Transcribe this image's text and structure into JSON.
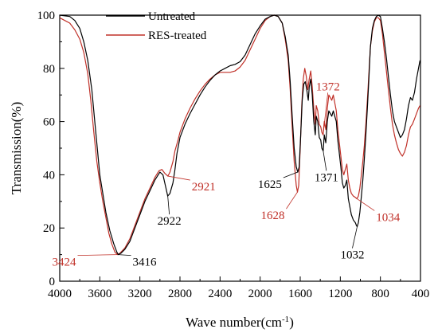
{
  "chart_data": {
    "type": "line",
    "xlabel": "Wave number(cm",
    "xlabel_sup": "-1",
    "xlabel_suffix": ")",
    "ylabel": "Transmission(%)",
    "xlim": [
      4000,
      400
    ],
    "ylim": [
      0,
      100
    ],
    "x_reversed": true,
    "x_ticks": [
      4000,
      3600,
      3200,
      2800,
      2400,
      2000,
      1600,
      1200,
      800,
      400
    ],
    "y_ticks": [
      0,
      20,
      40,
      60,
      80,
      100
    ],
    "grid": false,
    "legend_position": "top-center",
    "series": [
      {
        "name": "Untreated",
        "color": "#000000",
        "points": [
          [
            4000,
            100
          ],
          [
            3900,
            99.5
          ],
          [
            3850,
            98
          ],
          [
            3800,
            95
          ],
          [
            3760,
            90
          ],
          [
            3720,
            83
          ],
          [
            3680,
            72
          ],
          [
            3650,
            60
          ],
          [
            3620,
            48
          ],
          [
            3600,
            40
          ],
          [
            3570,
            33
          ],
          [
            3540,
            26
          ],
          [
            3500,
            19
          ],
          [
            3460,
            14
          ],
          [
            3430,
            11
          ],
          [
            3416,
            10
          ],
          [
            3390,
            10.5
          ],
          [
            3350,
            12
          ],
          [
            3300,
            15
          ],
          [
            3250,
            20
          ],
          [
            3200,
            25
          ],
          [
            3150,
            30
          ],
          [
            3100,
            34
          ],
          [
            3050,
            38
          ],
          [
            3000,
            41
          ],
          [
            2970,
            40
          ],
          [
            2940,
            35
          ],
          [
            2922,
            32
          ],
          [
            2900,
            33
          ],
          [
            2870,
            37
          ],
          [
            2850,
            42
          ],
          [
            2830,
            48
          ],
          [
            2800,
            54
          ],
          [
            2750,
            59
          ],
          [
            2700,
            63
          ],
          [
            2650,
            66.5
          ],
          [
            2600,
            70
          ],
          [
            2550,
            73
          ],
          [
            2500,
            75.5
          ],
          [
            2450,
            77.5
          ],
          [
            2400,
            79
          ],
          [
            2350,
            80
          ],
          [
            2300,
            81
          ],
          [
            2250,
            81.5
          ],
          [
            2200,
            82.5
          ],
          [
            2150,
            85
          ],
          [
            2100,
            89
          ],
          [
            2050,
            93
          ],
          [
            2000,
            96
          ],
          [
            1950,
            98.5
          ],
          [
            1900,
            99.5
          ],
          [
            1860,
            100
          ],
          [
            1820,
            99.5
          ],
          [
            1780,
            97
          ],
          [
            1750,
            92
          ],
          [
            1720,
            85
          ],
          [
            1700,
            75
          ],
          [
            1680,
            62
          ],
          [
            1660,
            50
          ],
          [
            1640,
            43
          ],
          [
            1625,
            41
          ],
          [
            1610,
            43
          ],
          [
            1595,
            55
          ],
          [
            1580,
            68
          ],
          [
            1565,
            74
          ],
          [
            1550,
            75
          ],
          [
            1535,
            72
          ],
          [
            1520,
            68
          ],
          [
            1510,
            73
          ],
          [
            1495,
            76
          ],
          [
            1480,
            70
          ],
          [
            1465,
            60
          ],
          [
            1450,
            55
          ],
          [
            1440,
            62
          ],
          [
            1425,
            60
          ],
          [
            1410,
            54
          ],
          [
            1395,
            53
          ],
          [
            1385,
            50
          ],
          [
            1371,
            49
          ],
          [
            1360,
            55
          ],
          [
            1345,
            52
          ],
          [
            1330,
            60
          ],
          [
            1315,
            64
          ],
          [
            1300,
            63
          ],
          [
            1285,
            62
          ],
          [
            1270,
            64
          ],
          [
            1255,
            62
          ],
          [
            1240,
            60
          ],
          [
            1225,
            53
          ],
          [
            1210,
            48
          ],
          [
            1195,
            43
          ],
          [
            1180,
            37
          ],
          [
            1165,
            35
          ],
          [
            1150,
            36
          ],
          [
            1135,
            38
          ],
          [
            1120,
            31
          ],
          [
            1105,
            28
          ],
          [
            1090,
            25
          ],
          [
            1070,
            23
          ],
          [
            1050,
            22
          ],
          [
            1040,
            21
          ],
          [
            1032,
            20.5
          ],
          [
            1020,
            22
          ],
          [
            1005,
            26
          ],
          [
            990,
            32
          ],
          [
            975,
            38
          ],
          [
            960,
            46
          ],
          [
            945,
            55
          ],
          [
            930,
            65
          ],
          [
            915,
            76
          ],
          [
            900,
            88
          ],
          [
            880,
            95
          ],
          [
            860,
            98
          ],
          [
            840,
            99.5
          ],
          [
            820,
            100
          ],
          [
            800,
            99.5
          ],
          [
            780,
            95
          ],
          [
            760,
            90
          ],
          [
            740,
            84
          ],
          [
            720,
            77
          ],
          [
            700,
            70
          ],
          [
            680,
            64
          ],
          [
            660,
            60
          ],
          [
            640,
            58
          ],
          [
            620,
            56
          ],
          [
            600,
            54
          ],
          [
            580,
            55
          ],
          [
            560,
            57
          ],
          [
            540,
            61
          ],
          [
            520,
            66
          ],
          [
            500,
            69
          ],
          [
            480,
            68
          ],
          [
            460,
            71
          ],
          [
            440,
            76
          ],
          [
            420,
            80
          ],
          [
            405,
            83
          ]
        ]
      },
      {
        "name": "RES-treated",
        "color": "#c03028",
        "points": [
          [
            4000,
            99
          ],
          [
            3950,
            98
          ],
          [
            3900,
            97
          ],
          [
            3850,
            94.5
          ],
          [
            3800,
            91
          ],
          [
            3760,
            86
          ],
          [
            3720,
            78
          ],
          [
            3690,
            68
          ],
          [
            3660,
            56
          ],
          [
            3630,
            45
          ],
          [
            3600,
            37
          ],
          [
            3570,
            30
          ],
          [
            3540,
            24
          ],
          [
            3510,
            18
          ],
          [
            3480,
            14
          ],
          [
            3450,
            11
          ],
          [
            3424,
            10
          ],
          [
            3400,
            10.5
          ],
          [
            3350,
            12.5
          ],
          [
            3300,
            16
          ],
          [
            3250,
            21
          ],
          [
            3200,
            26
          ],
          [
            3150,
            31
          ],
          [
            3100,
            35
          ],
          [
            3050,
            39
          ],
          [
            3010,
            41.5
          ],
          [
            2980,
            42
          ],
          [
            2950,
            40.5
          ],
          [
            2921,
            39.5
          ],
          [
            2900,
            41
          ],
          [
            2870,
            45
          ],
          [
            2850,
            49
          ],
          [
            2820,
            53
          ],
          [
            2800,
            56
          ],
          [
            2750,
            61
          ],
          [
            2700,
            65
          ],
          [
            2650,
            68.5
          ],
          [
            2600,
            71.5
          ],
          [
            2550,
            74
          ],
          [
            2500,
            76
          ],
          [
            2450,
            77.5
          ],
          [
            2400,
            78.5
          ],
          [
            2350,
            78.5
          ],
          [
            2300,
            78.5
          ],
          [
            2250,
            79
          ],
          [
            2200,
            80.5
          ],
          [
            2150,
            83
          ],
          [
            2100,
            87
          ],
          [
            2050,
            91
          ],
          [
            2000,
            95
          ],
          [
            1950,
            98
          ],
          [
            1900,
            99.5
          ],
          [
            1860,
            100
          ],
          [
            1820,
            99.5
          ],
          [
            1780,
            97
          ],
          [
            1750,
            91
          ],
          [
            1720,
            83
          ],
          [
            1700,
            72
          ],
          [
            1680,
            58
          ],
          [
            1660,
            45
          ],
          [
            1640,
            36
          ],
          [
            1628,
            33.5
          ],
          [
            1615,
            36
          ],
          [
            1600,
            50
          ],
          [
            1585,
            66
          ],
          [
            1570,
            76
          ],
          [
            1555,
            80
          ],
          [
            1540,
            77
          ],
          [
            1525,
            72
          ],
          [
            1510,
            76
          ],
          [
            1495,
            79
          ],
          [
            1480,
            73
          ],
          [
            1465,
            65
          ],
          [
            1450,
            59
          ],
          [
            1440,
            66
          ],
          [
            1425,
            64
          ],
          [
            1410,
            59
          ],
          [
            1395,
            58
          ],
          [
            1385,
            56
          ],
          [
            1372,
            55
          ],
          [
            1360,
            60
          ],
          [
            1345,
            57
          ],
          [
            1330,
            65
          ],
          [
            1315,
            70
          ],
          [
            1300,
            69
          ],
          [
            1285,
            68
          ],
          [
            1270,
            70
          ],
          [
            1255,
            67
          ],
          [
            1240,
            64
          ],
          [
            1225,
            57
          ],
          [
            1210,
            52
          ],
          [
            1195,
            47
          ],
          [
            1180,
            42
          ],
          [
            1165,
            40
          ],
          [
            1150,
            42
          ],
          [
            1135,
            44
          ],
          [
            1120,
            38
          ],
          [
            1105,
            35
          ],
          [
            1090,
            33
          ],
          [
            1070,
            32
          ],
          [
            1050,
            31.5
          ],
          [
            1034,
            31
          ],
          [
            1020,
            32
          ],
          [
            1005,
            35
          ],
          [
            990,
            40
          ],
          [
            975,
            45
          ],
          [
            960,
            51
          ],
          [
            945,
            59
          ],
          [
            930,
            68
          ],
          [
            915,
            78
          ],
          [
            900,
            88
          ],
          [
            880,
            94
          ],
          [
            860,
            97.5
          ],
          [
            840,
            99
          ],
          [
            820,
            99
          ],
          [
            800,
            98
          ],
          [
            780,
            93
          ],
          [
            760,
            86
          ],
          [
            740,
            79
          ],
          [
            720,
            72
          ],
          [
            700,
            65
          ],
          [
            680,
            59
          ],
          [
            660,
            55
          ],
          [
            640,
            52
          ],
          [
            620,
            49.5
          ],
          [
            600,
            48
          ],
          [
            580,
            47
          ],
          [
            560,
            48.5
          ],
          [
            540,
            51
          ],
          [
            520,
            55
          ],
          [
            500,
            58
          ],
          [
            480,
            59
          ],
          [
            460,
            61
          ],
          [
            440,
            63
          ],
          [
            420,
            65
          ],
          [
            405,
            66
          ]
        ]
      }
    ],
    "annotations": [
      {
        "text": "3424",
        "color": "#c03028",
        "x": 3424,
        "y": 10
      },
      {
        "text": "3416",
        "color": "#000000",
        "x": 3416,
        "y": 10
      },
      {
        "text": "2922",
        "color": "#000000",
        "x": 2922,
        "y": 32
      },
      {
        "text": "2921",
        "color": "#c03028",
        "x": 2921,
        "y": 39.5
      },
      {
        "text": "1625",
        "color": "#000000",
        "x": 1625,
        "y": 41
      },
      {
        "text": "1628",
        "color": "#c03028",
        "x": 1628,
        "y": 33.5
      },
      {
        "text": "1371",
        "color": "#000000",
        "x": 1371,
        "y": 49
      },
      {
        "text": "1372",
        "color": "#c03028",
        "x": 1372,
        "y": 55
      },
      {
        "text": "1032",
        "color": "#000000",
        "x": 1032,
        "y": 20.5
      },
      {
        "text": "1034",
        "color": "#c03028",
        "x": 1034,
        "y": 31
      }
    ]
  }
}
